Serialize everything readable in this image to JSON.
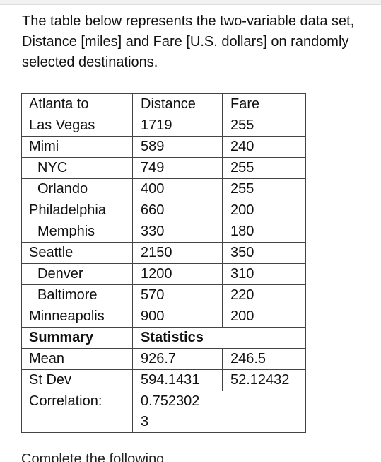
{
  "intro": "The table below represents the two-variable data set, Distance [miles] and Fare [U.S. dollars] on randomly selected destinations.",
  "table": {
    "headers": [
      "Atlanta to",
      "Distance",
      "Fare"
    ],
    "rows": [
      [
        "Las Vegas",
        "1719",
        "255"
      ],
      [
        "Mimi",
        "589",
        "240"
      ],
      [
        "NYC",
        "749",
        "255"
      ],
      [
        "Orlando",
        "400",
        "255"
      ],
      [
        "Philadelphia",
        "660",
        "200"
      ],
      [
        "Memphis",
        "330",
        "180"
      ],
      [
        "Seattle",
        "2150",
        "350"
      ],
      [
        "Denver",
        "1200",
        "310"
      ],
      [
        "Baltimore",
        "570",
        "220"
      ],
      [
        "Minneapolis",
        "900",
        "200"
      ]
    ],
    "summary_label": "Summary",
    "statistics_label": "Statistics",
    "mean": {
      "label": "Mean",
      "distance": "926.7",
      "fare": "246.5"
    },
    "stdev": {
      "label": "St Dev",
      "distance": "594.1431",
      "fare": "52.12432"
    },
    "correlation": {
      "label": "Correlation:",
      "value_line1": "0.752302",
      "value_line2": "3"
    }
  },
  "bottom_partial_text": "Complete the following"
}
